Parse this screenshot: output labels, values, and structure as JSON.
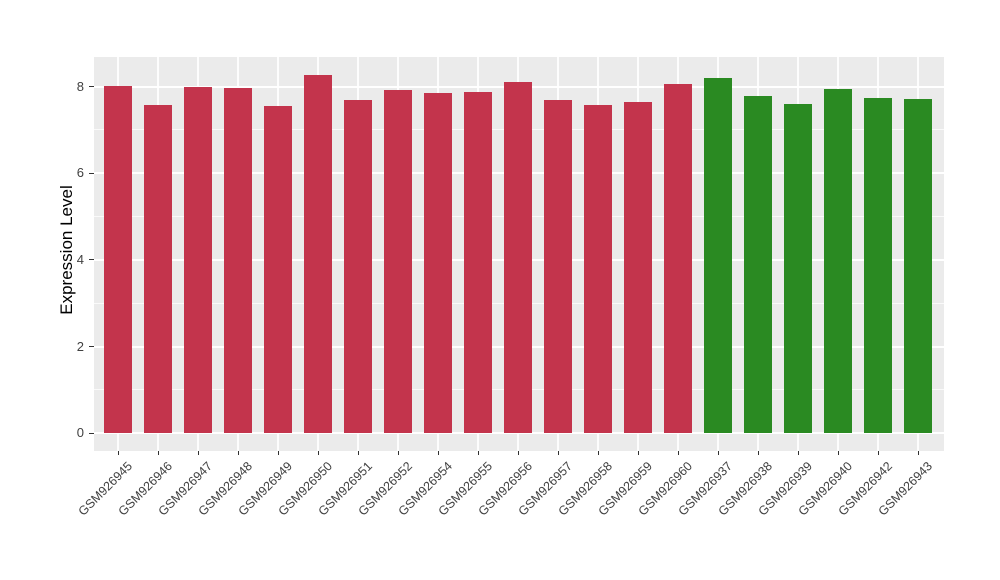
{
  "chart_data": {
    "type": "bar",
    "title": "",
    "xlabel": "",
    "ylabel": "Expression Level",
    "categories": [
      "GSM926945",
      "GSM926946",
      "GSM926947",
      "GSM926948",
      "GSM926949",
      "GSM926950",
      "GSM926951",
      "GSM926952",
      "GSM926954",
      "GSM926955",
      "GSM926956",
      "GSM926957",
      "GSM926958",
      "GSM926959",
      "GSM926960",
      "GSM926937",
      "GSM926938",
      "GSM926939",
      "GSM926940",
      "GSM926942",
      "GSM926943"
    ],
    "values": [
      8.01,
      7.58,
      7.99,
      7.98,
      7.55,
      8.27,
      7.69,
      7.92,
      7.85,
      7.88,
      8.11,
      7.69,
      7.58,
      7.65,
      8.06,
      8.21,
      7.78,
      7.59,
      7.95,
      7.74,
      7.71
    ],
    "bar_colors": [
      "#C3344C",
      "#C3344C",
      "#C3344C",
      "#C3344C",
      "#C3344C",
      "#C3344C",
      "#C3344C",
      "#C3344C",
      "#C3344C",
      "#C3344C",
      "#C3344C",
      "#C3344C",
      "#C3344C",
      "#C3344C",
      "#C3344C",
      "#2A8A22",
      "#2A8A22",
      "#2A8A22",
      "#2A8A22",
      "#2A8A22",
      "#2A8A22"
    ],
    "yticks": [
      0,
      2,
      4,
      6,
      8
    ],
    "minor_gridlines": [
      1,
      3,
      5,
      7
    ],
    "ylim": [
      0,
      8.68
    ],
    "x_tick_rotation_deg": 45,
    "grid": "on",
    "legend": "none",
    "colors": {
      "red_group": "#C3344C",
      "green_group": "#2A8A22",
      "panel_background": "#EBEBEB",
      "gridline": "#FFFFFF",
      "axis_text": "#404040",
      "axis_title": "#000000",
      "figure_background": "#FFFFFF"
    }
  }
}
